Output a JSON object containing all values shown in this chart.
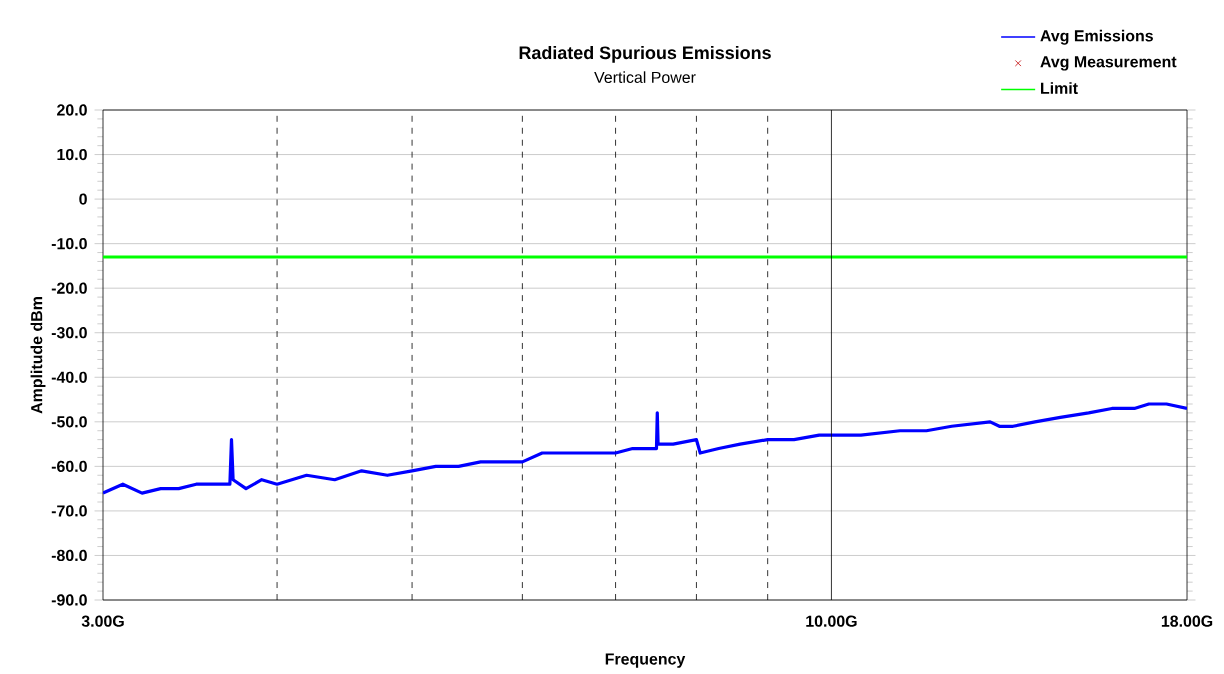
{
  "chart_data": {
    "type": "line",
    "title": "Radiated Spurious Emissions",
    "subtitle": "Vertical Power",
    "xlabel": "Frequency",
    "ylabel": "Amplitude dBm",
    "log": "x",
    "grid": true,
    "legend": "top right",
    "ref_lines": [
      {
        "axis": "x",
        "value": 10,
        "color": "#000000",
        "line_style": "solid"
      }
    ],
    "xlim": [
      3,
      18
    ],
    "ylim": [
      -90,
      20
    ],
    "xticks": [
      {
        "value": 3,
        "label": "3.00G"
      },
      {
        "value": 4,
        "label": null
      },
      {
        "value": 5,
        "label": null
      },
      {
        "value": 6,
        "label": null
      },
      {
        "value": 7,
        "label": null
      },
      {
        "value": 8,
        "label": null
      },
      {
        "value": 9,
        "label": null
      },
      {
        "value": 10,
        "label": "10.00G"
      },
      {
        "value": 18,
        "label": "18.00G"
      }
    ],
    "yticks": [
      {
        "value": 20,
        "label": "20.0"
      },
      {
        "value": 10,
        "label": "10.0"
      },
      0,
      {
        "value": -10,
        "label": "-10.0"
      },
      {
        "value": -20,
        "label": "-20.0"
      },
      {
        "value": -30,
        "label": "-30.0"
      },
      {
        "value": -40,
        "label": "-40.0"
      },
      {
        "value": -50,
        "label": "-50.0"
      },
      {
        "value": -60,
        "label": "-60.0"
      },
      {
        "value": -70,
        "label": "-70.0"
      },
      {
        "value": -80,
        "label": "-80.0"
      },
      {
        "value": -90,
        "label": "-90.0"
      }
    ],
    "series": [
      {
        "name": "Avg Emissions",
        "color": "#0000ff",
        "x": [
          3.0,
          3.1,
          3.2,
          3.3,
          3.4,
          3.5,
          3.6,
          3.7,
          3.71,
          3.72,
          3.8,
          3.9,
          4.0,
          4.2,
          4.4,
          4.6,
          4.8,
          5.0,
          5.2,
          5.4,
          5.6,
          5.8,
          6.0,
          6.2,
          6.4,
          6.6,
          6.8,
          7.0,
          7.2,
          7.4,
          7.49,
          7.5,
          7.51,
          7.7,
          8.0,
          8.05,
          8.3,
          8.6,
          9.0,
          9.4,
          9.8,
          10.0,
          10.5,
          11.2,
          11.7,
          12.2,
          13.0,
          13.2,
          13.5,
          14.0,
          14.6,
          15.3,
          15.9,
          16.5,
          16.9,
          17.4,
          18.0
        ],
        "values": [
          -66,
          -64,
          -66,
          -65,
          -65,
          -64,
          -64,
          -64,
          -54,
          -63,
          -65,
          -63,
          -64,
          -62,
          -63,
          -61,
          -62,
          -61,
          -60,
          -60,
          -59,
          -59,
          -59,
          -57,
          -57,
          -57,
          -57,
          -57,
          -56,
          -56,
          -56,
          -48,
          -55,
          -55,
          -54,
          -57,
          -56,
          -55,
          -54,
          -54,
          -53,
          -53,
          -53,
          -52,
          -52,
          -51,
          -50,
          -51,
          -51,
          -50,
          -49,
          -48,
          -47,
          -47,
          -46,
          -46,
          -47
        ]
      },
      {
        "name": "Avg Measurement",
        "type": "scatter",
        "color": "#c00000",
        "marker": "cross"
      },
      {
        "name": "Limit",
        "type": "line",
        "color": "#00ff00",
        "x": [
          3,
          18
        ],
        "values": [
          -13,
          -13
        ]
      }
    ]
  }
}
